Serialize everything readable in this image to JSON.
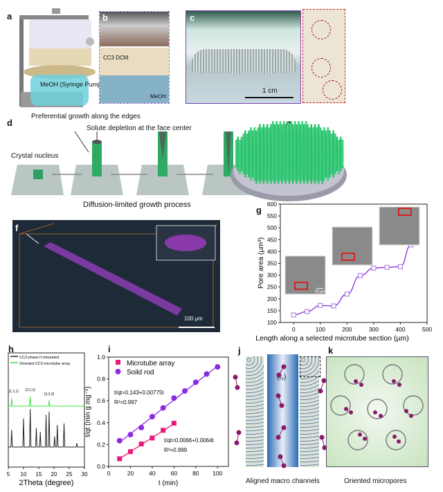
{
  "panels": {
    "a": {
      "label": "a",
      "annotation": "MeOH (Syringe Pump)"
    },
    "b": {
      "label": "b",
      "top_layer": "CC3 DCM",
      "bottom_layer": "MeOH"
    },
    "c": {
      "label": "c",
      "scale_bar": "1 cm"
    },
    "d": {
      "label": "d",
      "edge_note": "Preferential growth along the edges",
      "center_note": "Solute depletion at the face center",
      "nucleus_note": "Crystal nucleus",
      "caption": "Diffusion-limited growth process"
    },
    "e": {
      "label": "e"
    },
    "f": {
      "label": "f",
      "scale_bar": "100 µm"
    },
    "g": {
      "label": "g",
      "inset_scale": "50 µm"
    },
    "h": {
      "label": "h"
    },
    "i": {
      "label": "i",
      "eq_rod": "t/qt=0.143+0.00775t",
      "r2_rod": "R²=0.997",
      "eq_tube": "t/qt=0.0066+0.0064t",
      "r2_tube": "R²=0.999"
    },
    "j": {
      "label": "j",
      "guest": "(I₂)",
      "caption": "Aligned macro channels"
    },
    "k": {
      "label": "k",
      "caption": "Oriented micropores"
    }
  },
  "colors": {
    "purple": "#8a2be2",
    "green": "#2fbf6f",
    "pink": "#e8187a",
    "xrd_green": "#3be03b",
    "iodine": "#8b1a6b"
  },
  "chart_data": [
    {
      "id": "g",
      "type": "line",
      "xlabel": "Length along a selected microtube section (µm)",
      "ylabel": "Pore area (µm³)",
      "xlim": [
        -50,
        500
      ],
      "ylim": [
        100,
        600
      ],
      "xticks": [
        0,
        100,
        200,
        300,
        400,
        500
      ],
      "yticks": [
        100,
        150,
        200,
        250,
        300,
        350,
        400,
        450,
        500,
        550,
        600
      ],
      "x": [
        0,
        50,
        100,
        150,
        200,
        250,
        300,
        350,
        400,
        440
      ],
      "y": [
        132,
        146,
        172,
        170,
        220,
        298,
        330,
        333,
        336,
        428
      ],
      "marker": "open-square",
      "grid": false
    },
    {
      "id": "h",
      "type": "line",
      "xlabel": "2Theta (degree)",
      "ylabel": "",
      "xlim": [
        5,
        30
      ],
      "xticks": [
        5,
        10,
        15,
        20,
        25,
        30
      ],
      "series": [
        {
          "name": "CC3 phase II simulated",
          "color": "#222222",
          "peaks": [
            [
              6.1,
              0.45
            ],
            [
              10,
              0.75
            ],
            [
              12.2,
              1.0
            ],
            [
              14.2,
              0.5
            ],
            [
              15.5,
              0.4
            ],
            [
              17.4,
              0.85
            ],
            [
              18.4,
              0.93
            ],
            [
              20.2,
              0.28
            ],
            [
              21.1,
              0.58
            ],
            [
              23.3,
              0.62
            ],
            [
              27.5,
              0.1
            ]
          ]
        },
        {
          "name": "Oriented CC3 microtube array",
          "color": "#3be03b",
          "peaks": [
            [
              6.1,
              0.45
            ],
            [
              12.2,
              0.55
            ],
            [
              18.4,
              0.33
            ],
            [
              23.3,
              0.04
            ]
          ]
        }
      ],
      "peak_labels": [
        "(1,1,1)",
        "(2,2,2)",
        "(3,3,3)"
      ],
      "legend": "top-left",
      "grid": false
    },
    {
      "id": "i",
      "type": "scatter",
      "xlabel": "t (min)",
      "ylabel": "t/qt (min g mg⁻¹)",
      "xlim": [
        0,
        110
      ],
      "ylim": [
        0,
        1.0
      ],
      "xticks": [
        0,
        20,
        40,
        60,
        80,
        100
      ],
      "yticks": [
        0.0,
        0.2,
        0.4,
        0.6,
        0.8,
        1.0
      ],
      "series": [
        {
          "name": "Microtube array",
          "marker": "square",
          "color": "#e8187a",
          "x": [
            10,
            20,
            30,
            40,
            50,
            60
          ],
          "y": [
            0.07,
            0.135,
            0.205,
            0.26,
            0.33,
            0.395
          ],
          "fit": [
            0.0066,
            0.0064
          ]
        },
        {
          "name": "Soild rod",
          "marker": "circle",
          "color": "#8a2be2",
          "x": [
            10,
            20,
            30,
            40,
            50,
            60,
            70,
            80,
            90,
            100
          ],
          "y": [
            0.235,
            0.29,
            0.355,
            0.455,
            0.535,
            0.625,
            0.69,
            0.77,
            0.845,
            0.91
          ],
          "fit": [
            0.143,
            0.00775
          ]
        }
      ],
      "legend": "top-left",
      "grid": false
    }
  ]
}
